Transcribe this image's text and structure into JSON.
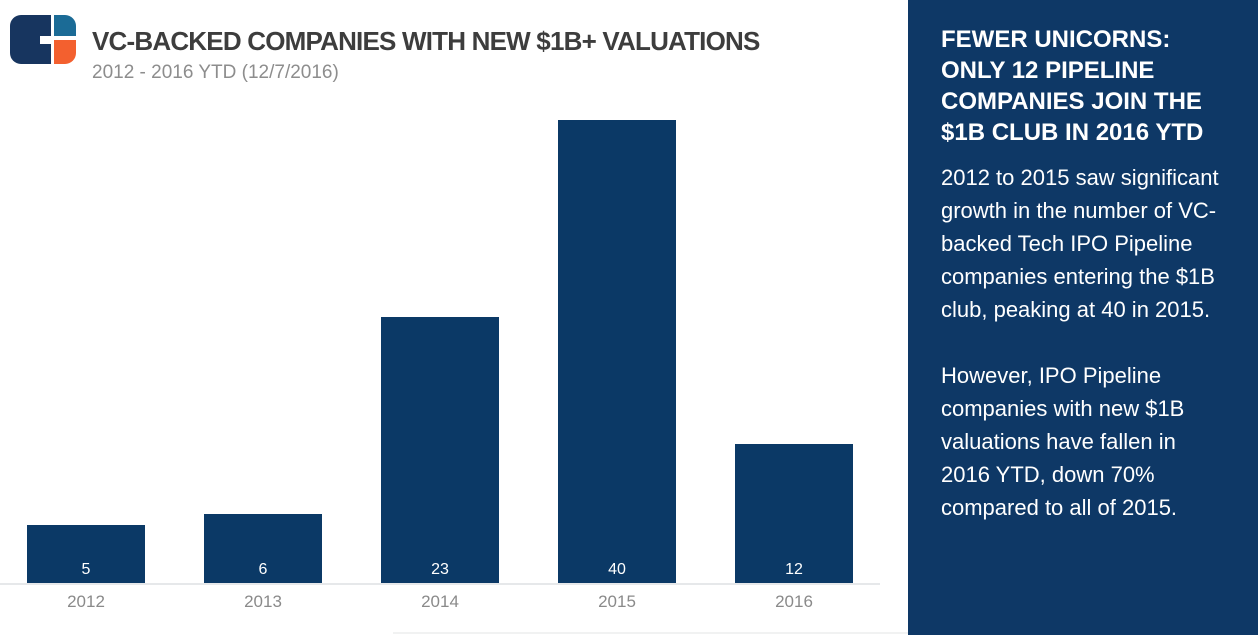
{
  "logo": {
    "label": "CB Insights logo",
    "colors": {
      "navy": "#17355F",
      "blue": "#1B6B96",
      "orange": "#F3602F"
    }
  },
  "header": {
    "title": "VC-BACKED COMPANIES WITH NEW $1B+ VALUATIONS",
    "subtitle": "2012 - 2016 YTD (12/7/2016)"
  },
  "chart_data": {
    "type": "bar",
    "categories": [
      "2012",
      "2013",
      "2014",
      "2015",
      "2016"
    ],
    "values": [
      5,
      6,
      23,
      40,
      12
    ],
    "title": "VC-BACKED COMPANIES WITH NEW $1B+ VALUATIONS",
    "subtitle": "2012 - 2016 YTD (12/7/2016)",
    "xlabel": "",
    "ylabel": "",
    "ylim": [
      0,
      40
    ],
    "grid": false,
    "legend": false,
    "bar_color": "#0B3966",
    "value_label_color": "#FFFFFF",
    "value_label_position": "inside-bottom",
    "axis_line_color": "#E6E8EA",
    "tick_label_color": "#8A8A8A"
  },
  "sidebar": {
    "background": "#0E3866",
    "text_color": "#FFFFFF",
    "heading": "FEWER UNICORNS: ONLY 12 PIPELINE COMPANIES JOIN THE $1B CLUB IN 2016 YTD",
    "paragraphs": [
      "2012 to 2015 saw significant growth in the number of VC-backed Tech IPO Pipeline companies entering the $1B club, peaking at 40 in 2015.",
      "However, IPO Pipeline companies with new $1B valuations have fallen in 2016 YTD, down 70% compared to all of 2015."
    ]
  }
}
